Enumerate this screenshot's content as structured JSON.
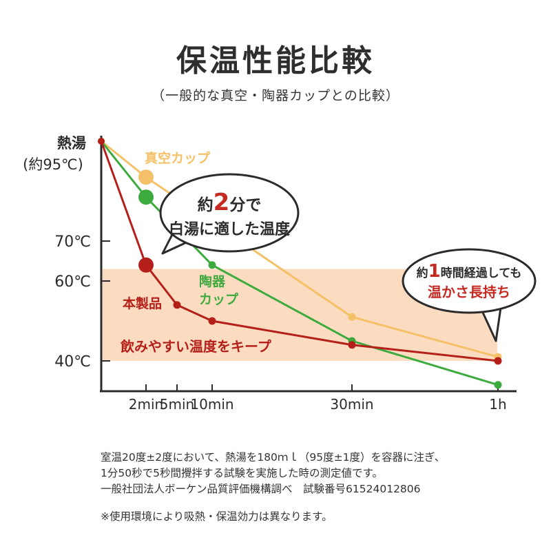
{
  "title": "保温性能比較",
  "subtitle": "（一般的な真空・陶器カップとの比較）",
  "colors": {
    "product": "#b51f1a",
    "vacuum": "#f5c168",
    "ceramic": "#3daa3e",
    "band": "#fbdcc0",
    "axis": "#2b2b2b",
    "callout_red": "#c52a22"
  },
  "chart_data": {
    "type": "line",
    "title": "保温性能比較",
    "subtitle": "（一般的な真空・陶器カップとの比較）",
    "xlabel": "",
    "ylabel": "",
    "x_ticks": [
      {
        "label": "2min",
        "value": 2
      },
      {
        "label": "5min",
        "value": 5
      },
      {
        "label": "10min",
        "value": 10
      },
      {
        "label": "30min",
        "value": 30
      },
      {
        "label": "1h",
        "value": 60
      }
    ],
    "y_ticks": [
      {
        "label": "熱湯\n(約95℃)",
        "value": 95
      },
      {
        "label": "70℃",
        "value": 70
      },
      {
        "label": "60℃",
        "value": 60
      },
      {
        "label": "40℃",
        "value": 40
      }
    ],
    "highlight_band": {
      "from": 40,
      "to": 63,
      "label": "飲みやすい温度をキープ"
    },
    "series": [
      {
        "name": "真空カップ",
        "key": "vacuum",
        "points": [
          [
            0,
            95
          ],
          [
            2,
            86
          ],
          [
            30,
            51
          ],
          [
            60,
            41
          ]
        ]
      },
      {
        "name": "陶器カップ",
        "key": "ceramic",
        "points": [
          [
            0,
            95
          ],
          [
            2,
            81
          ],
          [
            10,
            64
          ],
          [
            30,
            45
          ],
          [
            60,
            34
          ]
        ]
      },
      {
        "name": "本製品",
        "key": "product",
        "points": [
          [
            0,
            95
          ],
          [
            2,
            64
          ],
          [
            5,
            54
          ],
          [
            10,
            50
          ],
          [
            30,
            44
          ],
          [
            60,
            40
          ]
        ]
      }
    ],
    "series_labels": {
      "vacuum": "真空カップ",
      "ceramic": [
        "陶器",
        "カップ"
      ],
      "product": "本製品"
    }
  },
  "callout_left": {
    "pre": "約",
    "number": "2",
    "post": "分で",
    "line2": "白湯に適した温度"
  },
  "callout_right": {
    "pre": "約",
    "number": "1",
    "post": "時間経過しても",
    "line2": "温かさ長持ち"
  },
  "notes": [
    "室温20度±2度において、熱湯を180ｍｌ（95度±1度）を容器に注ぎ、",
    "1分50秒で5秒間攪拌する試験を実施した時の測定値です。",
    "一般社団法人ボーケン品質評価機構調べ　試験番号61524012806",
    "※使用環境により吸熱・保温効力は異なります。"
  ]
}
